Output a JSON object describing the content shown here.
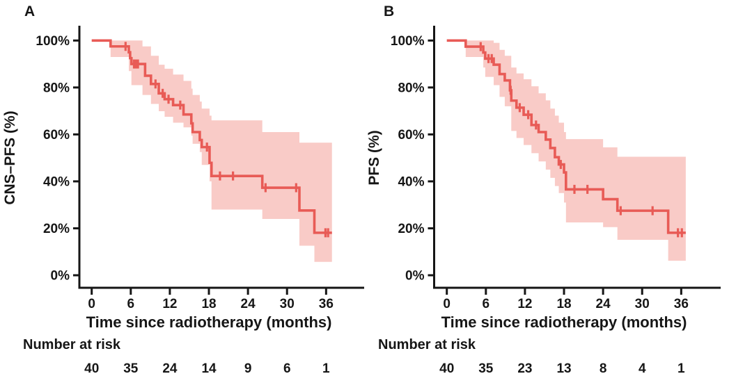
{
  "figure": {
    "background": "#ffffff",
    "line_color": "#e85b56",
    "band_color": "#f9cbc7",
    "axis_color": "#161616",
    "text_color": "#161616"
  },
  "chart_data": [
    {
      "type": "line",
      "subtype": "kaplan-meier-step-curve-with-confidence-band",
      "panel_label": "A",
      "ylabel": "CNS–PFS (%)",
      "xlabel": "Time since radiotherapy (months)",
      "xlim": [
        0,
        40
      ],
      "ylim": [
        0,
        100
      ],
      "x_ticks": [
        0,
        6,
        12,
        18,
        24,
        30,
        36
      ],
      "y_ticks": [
        0,
        20,
        40,
        60,
        80,
        100
      ],
      "y_tick_labels": [
        "0%",
        "20%",
        "40%",
        "60%",
        "80%",
        "100%"
      ],
      "grid": false,
      "legend": "none",
      "curve_end_time": 36.9,
      "survival_steps": [
        [
          0,
          100
        ],
        [
          2.9,
          97.5
        ],
        [
          5.7,
          95.0
        ],
        [
          5.9,
          92.5
        ],
        [
          6.1,
          90.0
        ],
        [
          8.2,
          85.0
        ],
        [
          9.1,
          81.5
        ],
        [
          10.3,
          77.5
        ],
        [
          11.2,
          75.0
        ],
        [
          12.5,
          72.5
        ],
        [
          14.1,
          68.5
        ],
        [
          15.3,
          64.7
        ],
        [
          15.5,
          61.0
        ],
        [
          16.6,
          57.6
        ],
        [
          16.9,
          54.6
        ],
        [
          18.1,
          47.9
        ],
        [
          18.4,
          42.3
        ],
        [
          26.2,
          37.3
        ],
        [
          31.9,
          27.6
        ],
        [
          34.2,
          18.1
        ]
      ],
      "censor_marks": [
        [
          5.2,
          97.5
        ],
        [
          6.5,
          90.0
        ],
        [
          6.8,
          90.0
        ],
        [
          7.1,
          90.0
        ],
        [
          9.8,
          81.5
        ],
        [
          10.9,
          77.5
        ],
        [
          11.8,
          75.0
        ],
        [
          13.6,
          72.5
        ],
        [
          17.7,
          54.6
        ],
        [
          19.7,
          42.3
        ],
        [
          21.7,
          42.3
        ],
        [
          26.7,
          37.3
        ],
        [
          31.4,
          37.3
        ],
        [
          35.9,
          18.1
        ],
        [
          36.3,
          18.1
        ]
      ],
      "confidence_band": [
        [
          2.9,
          93.0,
          100
        ],
        [
          5.7,
          87.0,
          100
        ],
        [
          6.1,
          81.0,
          100
        ],
        [
          7.8,
          76.8,
          97.5
        ],
        [
          9.1,
          73.0,
          93.5
        ],
        [
          10.3,
          69.9,
          89.7
        ],
        [
          11.2,
          67.5,
          88.0
        ],
        [
          12.5,
          65.0,
          85.5
        ],
        [
          14.1,
          63.0,
          82.8
        ],
        [
          15.3,
          59.5,
          79.5
        ],
        [
          15.5,
          56.0,
          76.8
        ],
        [
          16.6,
          52.5,
          74.0
        ],
        [
          16.9,
          47.0,
          71.0
        ],
        [
          18.1,
          40.0,
          68.0
        ],
        [
          18.4,
          28.0,
          66.0
        ],
        [
          26.2,
          24.0,
          61.0
        ],
        [
          31.9,
          12.6,
          56.5
        ],
        [
          34.2,
          5.7,
          56.5
        ]
      ],
      "number_at_risk": {
        "label": "Number at risk",
        "times": [
          0,
          6,
          12,
          18,
          24,
          30,
          36
        ],
        "values": [
          40,
          35,
          24,
          14,
          9,
          6,
          1
        ]
      }
    },
    {
      "type": "line",
      "subtype": "kaplan-meier-step-curve-with-confidence-band",
      "panel_label": "B",
      "ylabel": "PFS (%)",
      "xlabel": "Time since radiotherapy (months)",
      "xlim": [
        0,
        40
      ],
      "ylim": [
        0,
        100
      ],
      "x_ticks": [
        0,
        6,
        12,
        18,
        24,
        30,
        36
      ],
      "y_ticks": [
        0,
        20,
        40,
        60,
        80,
        100
      ],
      "y_tick_labels": [
        "0%",
        "20%",
        "40%",
        "60%",
        "80%",
        "100%"
      ],
      "grid": false,
      "legend": "none",
      "curve_end_time": 36.7,
      "survival_steps": [
        [
          0,
          100
        ],
        [
          2.9,
          97.4
        ],
        [
          5.6,
          94.9
        ],
        [
          5.9,
          92.3
        ],
        [
          7.2,
          89.7
        ],
        [
          8.1,
          85.7
        ],
        [
          8.9,
          83.0
        ],
        [
          9.7,
          78.8
        ],
        [
          9.9,
          74.4
        ],
        [
          10.7,
          71.4
        ],
        [
          11.8,
          68.4
        ],
        [
          13.0,
          64.0
        ],
        [
          14.1,
          61.0
        ],
        [
          15.2,
          57.8
        ],
        [
          15.9,
          54.2
        ],
        [
          16.6,
          50.3
        ],
        [
          17.2,
          47.2
        ],
        [
          18.0,
          43.8
        ],
        [
          18.3,
          36.6
        ],
        [
          24.0,
          32.4
        ],
        [
          26.2,
          27.5
        ],
        [
          34.0,
          18.1
        ]
      ],
      "censor_marks": [
        [
          5.2,
          97.4
        ],
        [
          6.4,
          92.3
        ],
        [
          6.9,
          92.3
        ],
        [
          9.8,
          78.8
        ],
        [
          11.2,
          71.4
        ],
        [
          12.5,
          68.4
        ],
        [
          13.7,
          64.0
        ],
        [
          17.5,
          47.2
        ],
        [
          19.6,
          36.6
        ],
        [
          21.6,
          36.6
        ],
        [
          26.7,
          27.5
        ],
        [
          31.6,
          27.5
        ],
        [
          35.5,
          18.1
        ],
        [
          36.1,
          18.1
        ]
      ],
      "confidence_band": [
        [
          2.9,
          93.0,
          100
        ],
        [
          5.6,
          88.5,
          100
        ],
        [
          5.9,
          84.5,
          100
        ],
        [
          7.2,
          81.0,
          99.0
        ],
        [
          8.1,
          76.0,
          96.0
        ],
        [
          8.9,
          72.0,
          93.5
        ],
        [
          9.9,
          61.5,
          88.5
        ],
        [
          10.7,
          58.5,
          86.0
        ],
        [
          11.8,
          55.5,
          83.5
        ],
        [
          13.0,
          52.0,
          80.5
        ],
        [
          14.1,
          48.5,
          77.5
        ],
        [
          15.2,
          45.0,
          74.5
        ],
        [
          15.9,
          41.5,
          71.0
        ],
        [
          16.6,
          38.0,
          68.0
        ],
        [
          17.2,
          35.0,
          65.0
        ],
        [
          18.0,
          31.0,
          61.0
        ],
        [
          18.3,
          22.5,
          58.0
        ],
        [
          24.0,
          20.5,
          54.5
        ],
        [
          26.2,
          15.1,
          50.5
        ],
        [
          34.0,
          6.2,
          50.5
        ]
      ],
      "number_at_risk": {
        "label": "Number at risk",
        "times": [
          0,
          6,
          12,
          18,
          24,
          30,
          36
        ],
        "values": [
          40,
          35,
          23,
          13,
          8,
          4,
          1
        ]
      }
    }
  ]
}
